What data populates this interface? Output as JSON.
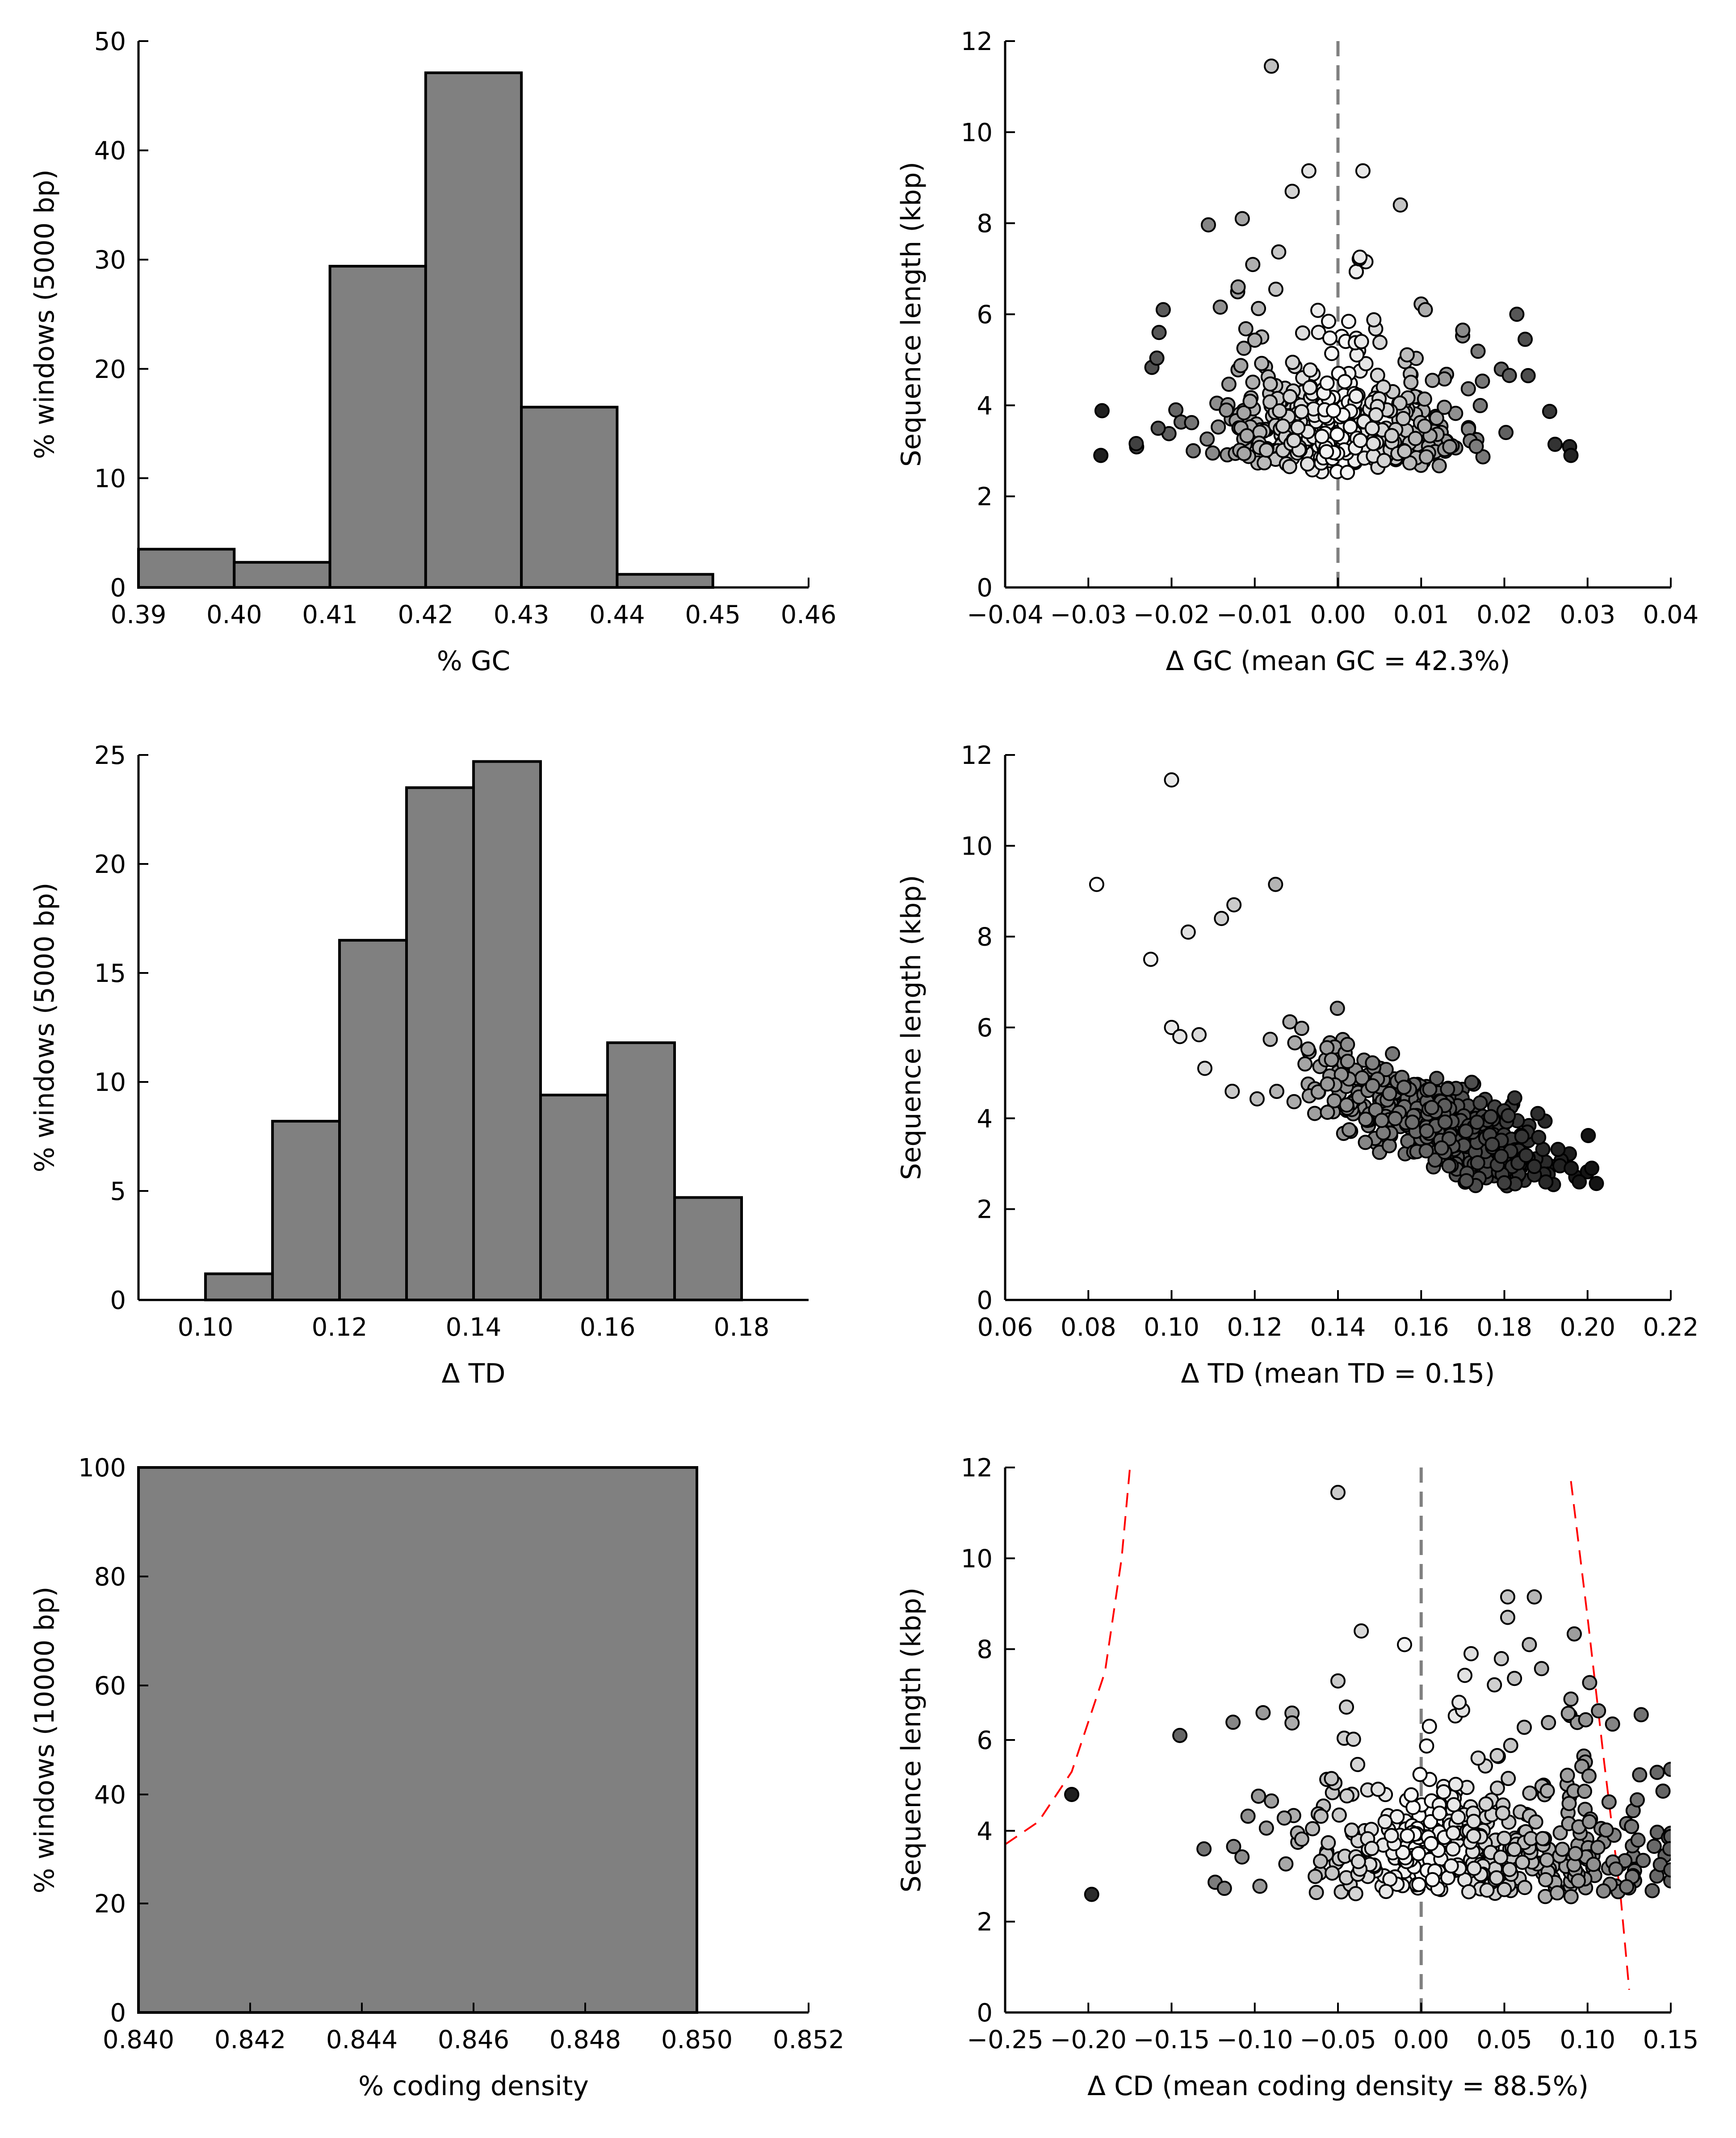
{
  "chart_data": [
    {
      "id": "gc-hist",
      "type": "bar",
      "xlabel": "% GC",
      "ylabel": "% windows (5000 bp)",
      "xlim": [
        0.39,
        0.46
      ],
      "ylim": [
        0,
        50
      ],
      "xticks": [
        "0.39",
        "0.40",
        "0.41",
        "0.42",
        "0.43",
        "0.44",
        "0.45",
        "0.46"
      ],
      "yticks": [
        "0",
        "10",
        "20",
        "30",
        "40",
        "50"
      ],
      "bins": [
        0.39,
        0.4,
        0.41,
        0.42,
        0.43,
        0.44,
        0.45
      ],
      "bin_width": 0.01,
      "values": [
        3.5,
        2.3,
        29.4,
        47.1,
        16.5,
        1.2,
        0.0
      ],
      "grid": false,
      "bar_color": "#808080"
    },
    {
      "id": "gc-scatter",
      "type": "scatter",
      "xlabel": "Δ GC (mean GC = 42.3%)",
      "ylabel": "Sequence length (kbp)",
      "xlim": [
        -0.04,
        0.04
      ],
      "ylim": [
        0,
        12
      ],
      "xticks": [
        "−0.04",
        "−0.03",
        "−0.02",
        "−0.01",
        "0.00",
        "0.01",
        "0.02",
        "0.03",
        "0.04"
      ],
      "yticks": [
        "0",
        "2",
        "4",
        "6",
        "8",
        "10",
        "12"
      ],
      "reference_line_x": 0.0,
      "grid": false,
      "outliers": [
        {
          "x": -0.0285,
          "y": 2.9
        },
        {
          "x": 0.028,
          "y": 2.9
        },
        {
          "x": -0.008,
          "y": 11.45
        },
        {
          "x": -0.0035,
          "y": 9.15
        },
        {
          "x": -0.0055,
          "y": 8.7
        },
        {
          "x": 0.0075,
          "y": 8.4
        },
        {
          "x": 0.003,
          "y": 9.15
        },
        {
          "x": -0.0115,
          "y": 8.1
        },
        {
          "x": 0.0105,
          "y": 6.1
        },
        {
          "x": -0.021,
          "y": 6.1
        },
        {
          "x": 0.0215,
          "y": 6.0
        },
        {
          "x": 0.0225,
          "y": 5.45
        },
        {
          "x": 0.015,
          "y": 5.65
        },
        {
          "x": -0.0215,
          "y": 5.6
        },
        {
          "x": -0.012,
          "y": 6.6
        }
      ],
      "cloud": {
        "count": 440,
        "x_mean": 0.0,
        "x_sd": 0.0085,
        "y_min": 2.5,
        "y_peak": 3.5
      }
    },
    {
      "id": "td-hist",
      "type": "bar",
      "xlabel": "Δ TD",
      "ylabel": "% windows (5000 bp)",
      "xlim": [
        0.09,
        0.19
      ],
      "ylim": [
        0,
        25
      ],
      "xticks": [
        "0.10",
        "0.12",
        "0.14",
        "0.16",
        "0.18"
      ],
      "yticks": [
        "0",
        "5",
        "10",
        "15",
        "20",
        "25"
      ],
      "bins": [
        0.1,
        0.11,
        0.12,
        0.13,
        0.14,
        0.15,
        0.16,
        0.17
      ],
      "bin_width": 0.01,
      "values": [
        1.2,
        8.2,
        16.5,
        23.5,
        24.7,
        9.4,
        11.8,
        4.7
      ],
      "grid": false,
      "bar_color": "#808080"
    },
    {
      "id": "td-scatter",
      "type": "scatter",
      "xlabel": "Δ TD (mean TD = 0.15)",
      "ylabel": "Sequence length (kbp)",
      "xlim": [
        0.06,
        0.22
      ],
      "ylim": [
        0,
        12
      ],
      "xticks": [
        "0.06",
        "0.08",
        "0.10",
        "0.12",
        "0.14",
        "0.16",
        "0.18",
        "0.20",
        "0.22"
      ],
      "yticks": [
        "0",
        "2",
        "4",
        "6",
        "8",
        "10",
        "12"
      ],
      "grid": false,
      "outliers": [
        {
          "x": 0.1,
          "y": 11.45
        },
        {
          "x": 0.082,
          "y": 9.15
        },
        {
          "x": 0.125,
          "y": 9.15
        },
        {
          "x": 0.115,
          "y": 8.7
        },
        {
          "x": 0.112,
          "y": 8.4
        },
        {
          "x": 0.104,
          "y": 8.1
        },
        {
          "x": 0.095,
          "y": 7.5
        },
        {
          "x": 0.201,
          "y": 2.9
        },
        {
          "x": 0.198,
          "y": 2.6
        },
        {
          "x": 0.1,
          "y": 6.0
        },
        {
          "x": 0.102,
          "y": 5.8
        },
        {
          "x": 0.108,
          "y": 5.1
        }
      ],
      "cloud": {
        "count": 440,
        "x_center": 0.163,
        "x_sd": 0.015,
        "slope_kbp_per_unit": -33,
        "y_min": 2.5
      }
    },
    {
      "id": "cd-hist",
      "type": "bar",
      "xlabel": "% coding density",
      "ylabel": "% windows (10000 bp)",
      "xlim": [
        0.84,
        0.852
      ],
      "ylim": [
        0,
        100
      ],
      "xticks": [
        "0.840",
        "0.842",
        "0.844",
        "0.846",
        "0.848",
        "0.850",
        "0.852"
      ],
      "yticks": [
        "0",
        "20",
        "40",
        "60",
        "80",
        "100"
      ],
      "bins": [
        0.84
      ],
      "bin_width": 0.01,
      "values": [
        100
      ],
      "grid": false,
      "bar_color": "#808080"
    },
    {
      "id": "cd-scatter",
      "type": "scatter",
      "xlabel": "Δ CD (mean coding density = 88.5%)",
      "ylabel": "Sequence length (kbp)",
      "xlim": [
        -0.25,
        0.15
      ],
      "ylim": [
        0,
        12
      ],
      "xticks": [
        "−0.25",
        "−0.20",
        "−0.15",
        "−0.10",
        "−0.05",
        "0.00",
        "0.05",
        "0.10",
        "0.15"
      ],
      "yticks": [
        "0",
        "2",
        "4",
        "6",
        "8",
        "10",
        "12"
      ],
      "reference_line_x": 0.0,
      "grid": false,
      "outliers": [
        {
          "x": -0.05,
          "y": 11.45
        },
        {
          "x": 0.052,
          "y": 9.15
        },
        {
          "x": 0.068,
          "y": 9.15
        },
        {
          "x": 0.052,
          "y": 8.7
        },
        {
          "x": -0.036,
          "y": 8.4
        },
        {
          "x": -0.01,
          "y": 8.1
        },
        {
          "x": 0.065,
          "y": 8.1
        },
        {
          "x": 0.03,
          "y": 7.9
        },
        {
          "x": -0.21,
          "y": 4.8
        },
        {
          "x": -0.198,
          "y": 2.6
        },
        {
          "x": 0.115,
          "y": 6.35
        },
        {
          "x": -0.145,
          "y": 6.1
        },
        {
          "x": -0.095,
          "y": 6.6
        },
        {
          "x": -0.05,
          "y": 7.3
        },
        {
          "x": 0.09,
          "y": 6.9
        }
      ],
      "cloud": {
        "count": 440,
        "x_mean": 0.03,
        "x_sd": 0.06,
        "y_min": 2.5,
        "y_peak": 3.6
      },
      "bounds": {
        "color": "#ff0000",
        "left": [
          [
            -0.25,
            3.7
          ],
          [
            -0.23,
            4.2
          ],
          [
            -0.21,
            5.3
          ],
          [
            -0.19,
            7.5
          ],
          [
            -0.18,
            10.0
          ],
          [
            -0.175,
            12.0
          ]
        ],
        "right": [
          [
            0.09,
            11.7
          ],
          [
            0.1,
            8.7
          ],
          [
            0.11,
            5.5
          ],
          [
            0.12,
            2.5
          ],
          [
            0.125,
            0.5
          ]
        ]
      }
    }
  ]
}
